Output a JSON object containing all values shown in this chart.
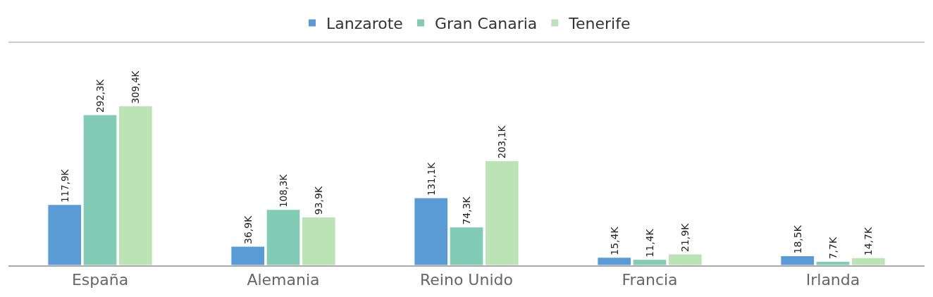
{
  "chart_data": {
    "type": "bar",
    "categories": [
      "España",
      "Alemania",
      "Reino Unido",
      "Francia",
      "Irlanda"
    ],
    "series": [
      {
        "name": "Lanzarote",
        "color": "#5b9bd5",
        "values": [
          117.9,
          36.9,
          131.1,
          15.4,
          18.5
        ],
        "value_labels": [
          "117,9K",
          "36,9K",
          "131,1K",
          "15,4K",
          "18,5K"
        ]
      },
      {
        "name": "Gran Canaria",
        "color": "#82cbb4",
        "values": [
          292.3,
          108.3,
          74.3,
          11.4,
          7.7
        ],
        "value_labels": [
          "292,3K",
          "108,3K",
          "74,3K",
          "11,4K",
          "7,7K"
        ]
      },
      {
        "name": "Tenerife",
        "color": "#bbe3b5",
        "values": [
          309.4,
          93.9,
          203.1,
          21.9,
          14.7
        ],
        "value_labels": [
          "309,4K",
          "93,9K",
          "203,1K",
          "21,9K",
          "14,7K"
        ]
      }
    ],
    "legend": "top"
  }
}
